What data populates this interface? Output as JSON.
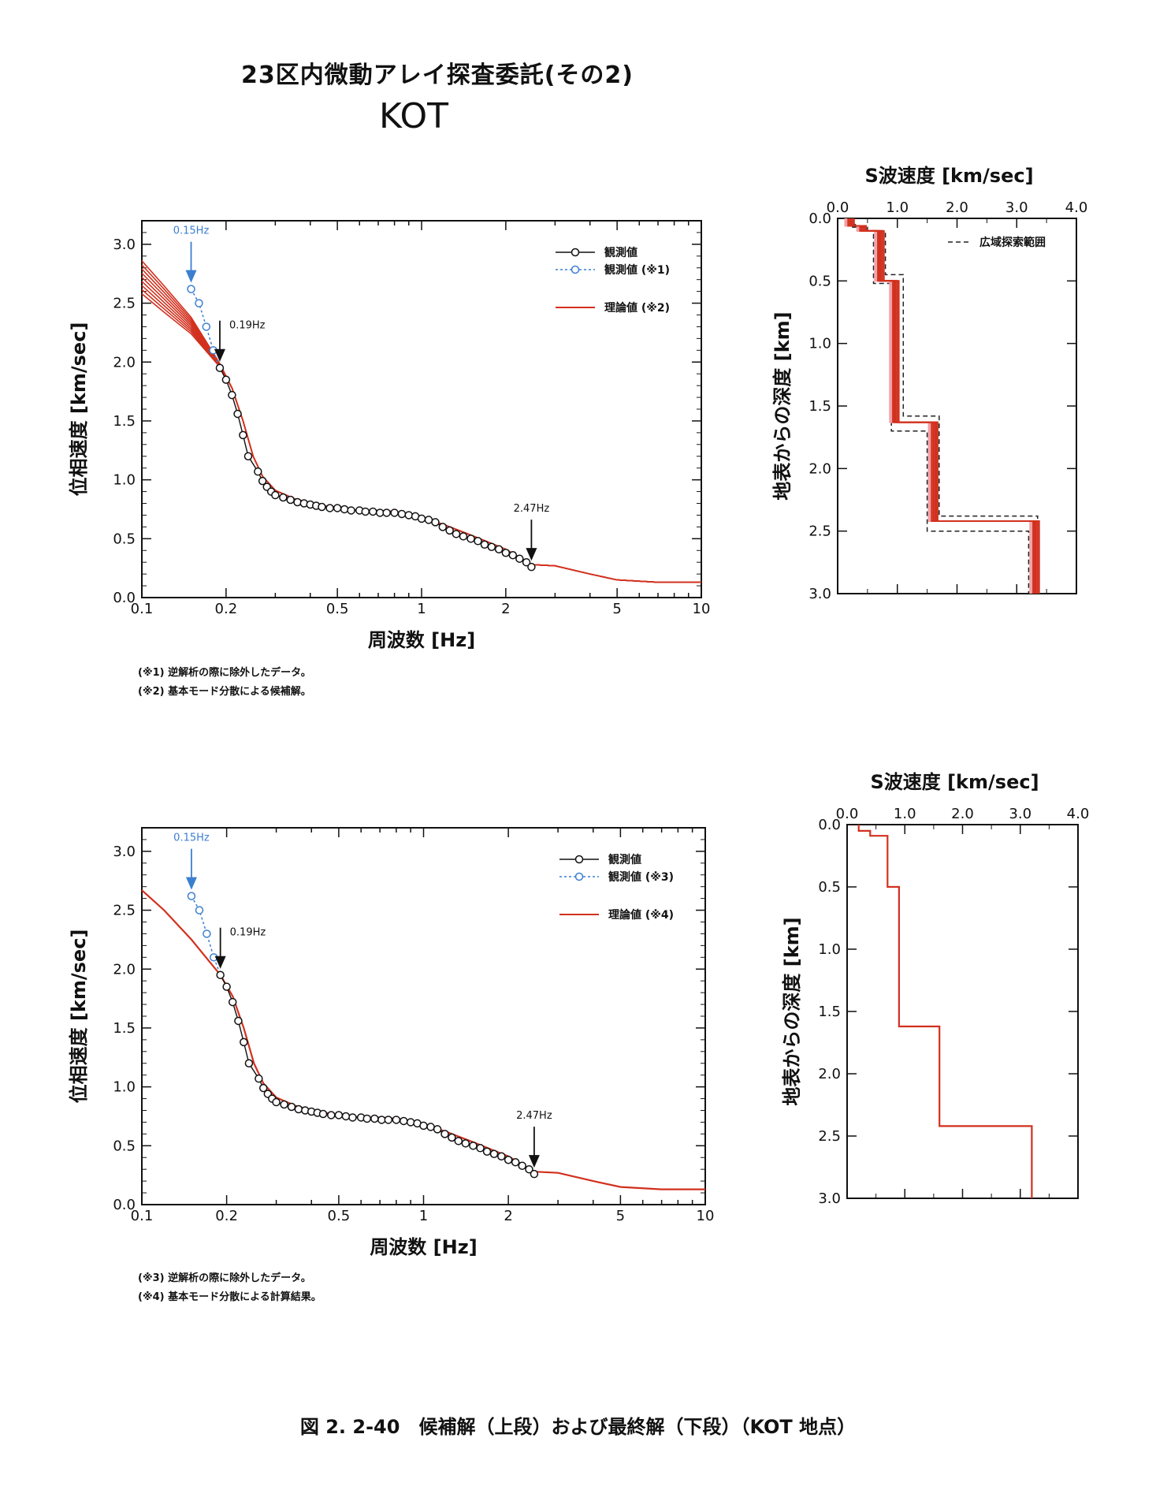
{
  "title": "23区内微動アレイ探査委託(その2)",
  "site": "KOT",
  "caption": "図 2. 2-40　候補解（上段）および最終解（下段）（KOT 地点）",
  "notes_top": [
    "(※1) 逆解析の際に除外したデータ。",
    "(※2) 基本モード分散による候補解。"
  ],
  "notes_bottom": [
    "(※3) 逆解析の際に除外したデータ。",
    "(※4) 基本モード分散による計算結果。"
  ],
  "colors": {
    "theory": "#d2301e",
    "excluded": "#3b7fd0",
    "observed": "#111111",
    "band_low": "#f2a0a6"
  },
  "chart_data": [
    {
      "id": "dispersion-top",
      "type": "line",
      "xscale": "log",
      "xlabel": "周波数 [Hz]",
      "ylabel": "位相速度 [km/sec]",
      "xlim": [
        0.1,
        10
      ],
      "ylim": [
        0,
        3.2
      ],
      "xticks": [
        0.1,
        0.2,
        0.5,
        1,
        2,
        5,
        10
      ],
      "xtick_labels": [
        "0.1",
        "0.2",
        "0.5",
        "1",
        "2",
        "5",
        "10"
      ],
      "yticks": [
        0,
        0.5,
        1.0,
        1.5,
        2.0,
        2.5,
        3.0
      ],
      "ytick_labels": [
        "0.0",
        "0.5",
        "1.0",
        "1.5",
        "2.0",
        "2.5",
        "3.0"
      ],
      "legend": [
        "観測値",
        "観測値 (※1)",
        "理論値 (※2)"
      ],
      "annotations": [
        {
          "text": "0.15Hz",
          "x": 0.15,
          "y": 2.62,
          "color": "#3b7fd0"
        },
        {
          "text": "0.19Hz",
          "x": 0.19,
          "y": 1.95,
          "color": "#111111"
        },
        {
          "text": "2.47Hz",
          "x": 2.47,
          "y": 0.26,
          "color": "#111111"
        }
      ],
      "series": [
        {
          "name": "観測値",
          "x": [
            0.19,
            0.2,
            0.21,
            0.22,
            0.23,
            0.24,
            0.26,
            0.27,
            0.28,
            0.29,
            0.3,
            0.32,
            0.34,
            0.36,
            0.38,
            0.4,
            0.42,
            0.44,
            0.47,
            0.5,
            0.53,
            0.56,
            0.6,
            0.63,
            0.67,
            0.71,
            0.75,
            0.8,
            0.85,
            0.9,
            0.95,
            1.0,
            1.06,
            1.12,
            1.19,
            1.26,
            1.33,
            1.41,
            1.5,
            1.59,
            1.68,
            1.78,
            1.89,
            2.0,
            2.12,
            2.24,
            2.37,
            2.47
          ],
          "y": [
            1.95,
            1.85,
            1.72,
            1.56,
            1.38,
            1.2,
            1.07,
            0.99,
            0.94,
            0.9,
            0.87,
            0.85,
            0.83,
            0.81,
            0.8,
            0.79,
            0.78,
            0.77,
            0.76,
            0.76,
            0.75,
            0.74,
            0.74,
            0.73,
            0.73,
            0.72,
            0.72,
            0.72,
            0.71,
            0.7,
            0.69,
            0.67,
            0.66,
            0.64,
            0.6,
            0.57,
            0.54,
            0.52,
            0.5,
            0.48,
            0.45,
            0.43,
            0.41,
            0.38,
            0.36,
            0.33,
            0.3,
            0.26
          ]
        },
        {
          "name": "観測値 (※1)",
          "x": [
            0.15,
            0.16,
            0.17,
            0.18,
            0.19
          ],
          "y": [
            2.62,
            2.5,
            2.3,
            2.1,
            1.95
          ]
        },
        {
          "name": "理論値 (※2)",
          "x": [
            0.1,
            0.12,
            0.15,
            0.19,
            0.21,
            0.23,
            0.25,
            0.27,
            0.3,
            0.35,
            0.4,
            0.5,
            0.6,
            0.7,
            0.8,
            0.9,
            1.0,
            1.2,
            1.5,
            2.0,
            2.47,
            3.0,
            4.0,
            5.0,
            7.0,
            10.0
          ],
          "y": [
            2.7,
            2.52,
            2.3,
            1.97,
            1.78,
            1.5,
            1.2,
            1.03,
            0.91,
            0.84,
            0.8,
            0.76,
            0.74,
            0.74,
            0.73,
            0.71,
            0.68,
            0.62,
            0.53,
            0.41,
            0.28,
            0.27,
            0.2,
            0.15,
            0.13,
            0.13
          ],
          "spread_at_left": [
            2.58,
            2.86
          ]
        }
      ]
    },
    {
      "id": "vs-top",
      "type": "line",
      "title": "S波速度 [km/sec]",
      "xlabel_top": "S波速度 [km/sec]",
      "ylabel": "地表からの深度 [km]",
      "xlim": [
        0,
        4.0
      ],
      "ylim": [
        3.0,
        0
      ],
      "xticks": [
        0,
        1.0,
        2.0,
        3.0,
        4.0
      ],
      "xtick_labels": [
        "0.0",
        "1.0",
        "2.0",
        "3.0",
        "4.0"
      ],
      "yticks": [
        0,
        0.5,
        1.0,
        1.5,
        2.0,
        2.5,
        3.0
      ],
      "ytick_labels": [
        "0.0",
        "0.5",
        "1.0",
        "1.5",
        "2.0",
        "2.5",
        "3.0"
      ],
      "legend": [
        "広域探索範囲"
      ],
      "series": [
        {
          "name": "候補解",
          "vs": [
            0.2,
            0.4,
            0.7,
            0.95,
            1.6,
            3.3
          ],
          "top_km": [
            0,
            0.06,
            0.1,
            0.5,
            1.63,
            2.42
          ]
        },
        {
          "name": "広域探索範囲",
          "style": "dashed",
          "profile_lo": {
            "vs": [
              0.2,
              0.35,
              0.6,
              0.9,
              1.5,
              3.2
            ],
            "top_km": [
              0,
              0.05,
              0.1,
              0.52,
              1.7,
              2.5
            ]
          },
          "profile_hi": {
            "vs": [
              0.25,
              0.5,
              0.8,
              1.1,
              1.7,
              3.35
            ],
            "top_km": [
              0,
              0.07,
              0.1,
              0.45,
              1.58,
              2.38
            ]
          }
        }
      ]
    },
    {
      "id": "dispersion-bottom",
      "type": "line",
      "xscale": "log",
      "xlabel": "周波数 [Hz]",
      "ylabel": "位相速度 [km/sec]",
      "xlim": [
        0.1,
        10
      ],
      "ylim": [
        0,
        3.2
      ],
      "xticks": [
        0.1,
        0.2,
        0.5,
        1,
        2,
        5,
        10
      ],
      "xtick_labels": [
        "0.1",
        "0.2",
        "0.5",
        "1",
        "2",
        "5",
        "10"
      ],
      "yticks": [
        0,
        0.5,
        1.0,
        1.5,
        2.0,
        2.5,
        3.0
      ],
      "ytick_labels": [
        "0.0",
        "0.5",
        "1.0",
        "1.5",
        "2.0",
        "2.5",
        "3.0"
      ],
      "legend": [
        "観測値",
        "観測値 (※3)",
        "理論値 (※4)"
      ],
      "annotations": [
        {
          "text": "0.15Hz",
          "x": 0.15,
          "y": 2.62,
          "color": "#3b7fd0"
        },
        {
          "text": "0.19Hz",
          "x": 0.19,
          "y": 1.95,
          "color": "#111111"
        },
        {
          "text": "2.47Hz",
          "x": 2.47,
          "y": 0.26,
          "color": "#111111"
        }
      ],
      "series": [
        {
          "name": "観測値",
          "x": [
            0.19,
            0.2,
            0.21,
            0.22,
            0.23,
            0.24,
            0.26,
            0.27,
            0.28,
            0.29,
            0.3,
            0.32,
            0.34,
            0.36,
            0.38,
            0.4,
            0.42,
            0.44,
            0.47,
            0.5,
            0.53,
            0.56,
            0.6,
            0.63,
            0.67,
            0.71,
            0.75,
            0.8,
            0.85,
            0.9,
            0.95,
            1.0,
            1.06,
            1.12,
            1.19,
            1.26,
            1.33,
            1.41,
            1.5,
            1.59,
            1.68,
            1.78,
            1.89,
            2.0,
            2.12,
            2.24,
            2.37,
            2.47
          ],
          "y": [
            1.95,
            1.85,
            1.72,
            1.56,
            1.38,
            1.2,
            1.07,
            0.99,
            0.94,
            0.9,
            0.87,
            0.85,
            0.83,
            0.81,
            0.8,
            0.79,
            0.78,
            0.77,
            0.76,
            0.76,
            0.75,
            0.74,
            0.74,
            0.73,
            0.73,
            0.72,
            0.72,
            0.72,
            0.71,
            0.7,
            0.69,
            0.67,
            0.66,
            0.64,
            0.6,
            0.57,
            0.54,
            0.52,
            0.5,
            0.48,
            0.45,
            0.43,
            0.41,
            0.38,
            0.36,
            0.33,
            0.3,
            0.26
          ]
        },
        {
          "name": "観測値 (※3)",
          "x": [
            0.15,
            0.16,
            0.17,
            0.18,
            0.19
          ],
          "y": [
            2.62,
            2.5,
            2.3,
            2.1,
            1.95
          ]
        },
        {
          "name": "理論値 (※4)",
          "x": [
            0.1,
            0.12,
            0.15,
            0.19,
            0.21,
            0.23,
            0.25,
            0.27,
            0.3,
            0.35,
            0.4,
            0.5,
            0.6,
            0.7,
            0.8,
            0.9,
            1.0,
            1.2,
            1.5,
            2.0,
            2.47,
            3.0,
            4.0,
            5.0,
            7.0,
            10.0
          ],
          "y": [
            2.67,
            2.5,
            2.25,
            1.95,
            1.77,
            1.5,
            1.2,
            1.03,
            0.91,
            0.84,
            0.8,
            0.76,
            0.74,
            0.74,
            0.73,
            0.71,
            0.68,
            0.62,
            0.53,
            0.41,
            0.28,
            0.27,
            0.2,
            0.15,
            0.13,
            0.13
          ]
        }
      ]
    },
    {
      "id": "vs-bottom",
      "type": "line",
      "xlabel_top": "S波速度 [km/sec]",
      "ylabel": "地表からの深度 [km]",
      "xlim": [
        0,
        4.0
      ],
      "ylim": [
        3.0,
        0
      ],
      "xticks": [
        0,
        1.0,
        2.0,
        3.0,
        4.0
      ],
      "xtick_labels": [
        "0.0",
        "1.0",
        "2.0",
        "3.0",
        "4.0"
      ],
      "yticks": [
        0,
        0.5,
        1.0,
        1.5,
        2.0,
        2.5,
        3.0
      ],
      "ytick_labels": [
        "0.0",
        "0.5",
        "1.0",
        "1.5",
        "2.0",
        "2.5",
        "3.0"
      ],
      "series": [
        {
          "name": "最終解",
          "vs": [
            0.2,
            0.4,
            0.7,
            0.9,
            1.6,
            3.2
          ],
          "top_km": [
            0,
            0.05,
            0.09,
            0.5,
            1.62,
            2.42
          ]
        }
      ]
    }
  ]
}
